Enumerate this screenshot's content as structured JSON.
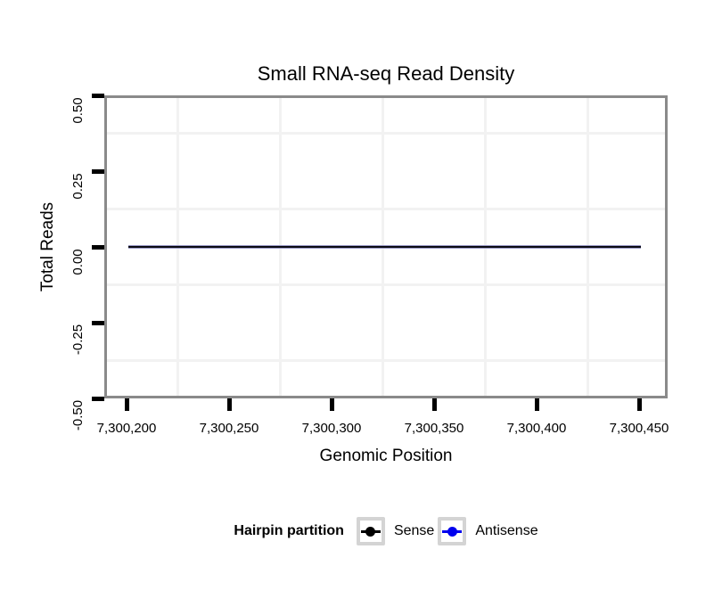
{
  "figure": {
    "background_color": "#ffffff",
    "panel_border_color": "#8a8a8a",
    "minor_grid_color": "#f2f2f2",
    "tick_color": "#000000"
  },
  "chart_data": {
    "type": "line",
    "title": "Small RNA-seq Read Density",
    "xlabel": "Genomic Position",
    "ylabel": "Total Reads",
    "xlim": [
      7300189,
      7300464
    ],
    "ylim": [
      -0.5,
      0.5
    ],
    "grid": {
      "minor_gridlines_only": true,
      "legend_position": "bottom"
    },
    "x_ticks": [
      {
        "value": 7300200,
        "label": "7,300,200"
      },
      {
        "value": 7300250,
        "label": "7,300,250"
      },
      {
        "value": 7300300,
        "label": "7,300,300"
      },
      {
        "value": 7300350,
        "label": "7,300,350"
      },
      {
        "value": 7300400,
        "label": "7,300,400"
      },
      {
        "value": 7300450,
        "label": "7,300,450"
      }
    ],
    "y_ticks": [
      {
        "value": 0.5,
        "label": "0.50"
      },
      {
        "value": 0.25,
        "label": "0.25"
      },
      {
        "value": 0.0,
        "label": "0.00"
      },
      {
        "value": -0.25,
        "label": "-0.25"
      },
      {
        "value": -0.5,
        "label": "-0.50"
      }
    ],
    "series": [
      {
        "name": "Sense",
        "color": "#000000",
        "x_start": 7300201,
        "x_end": 7300451,
        "constant_value": 0
      },
      {
        "name": "Antisense",
        "color": "#0000ee",
        "x_start": 7300201,
        "x_end": 7300451,
        "constant_value": 0
      }
    ],
    "legend": {
      "title": "Hairpin partition",
      "entries": [
        {
          "label": "Sense",
          "color": "#000000"
        },
        {
          "label": "Antisense",
          "color": "#0000ee"
        }
      ]
    }
  }
}
